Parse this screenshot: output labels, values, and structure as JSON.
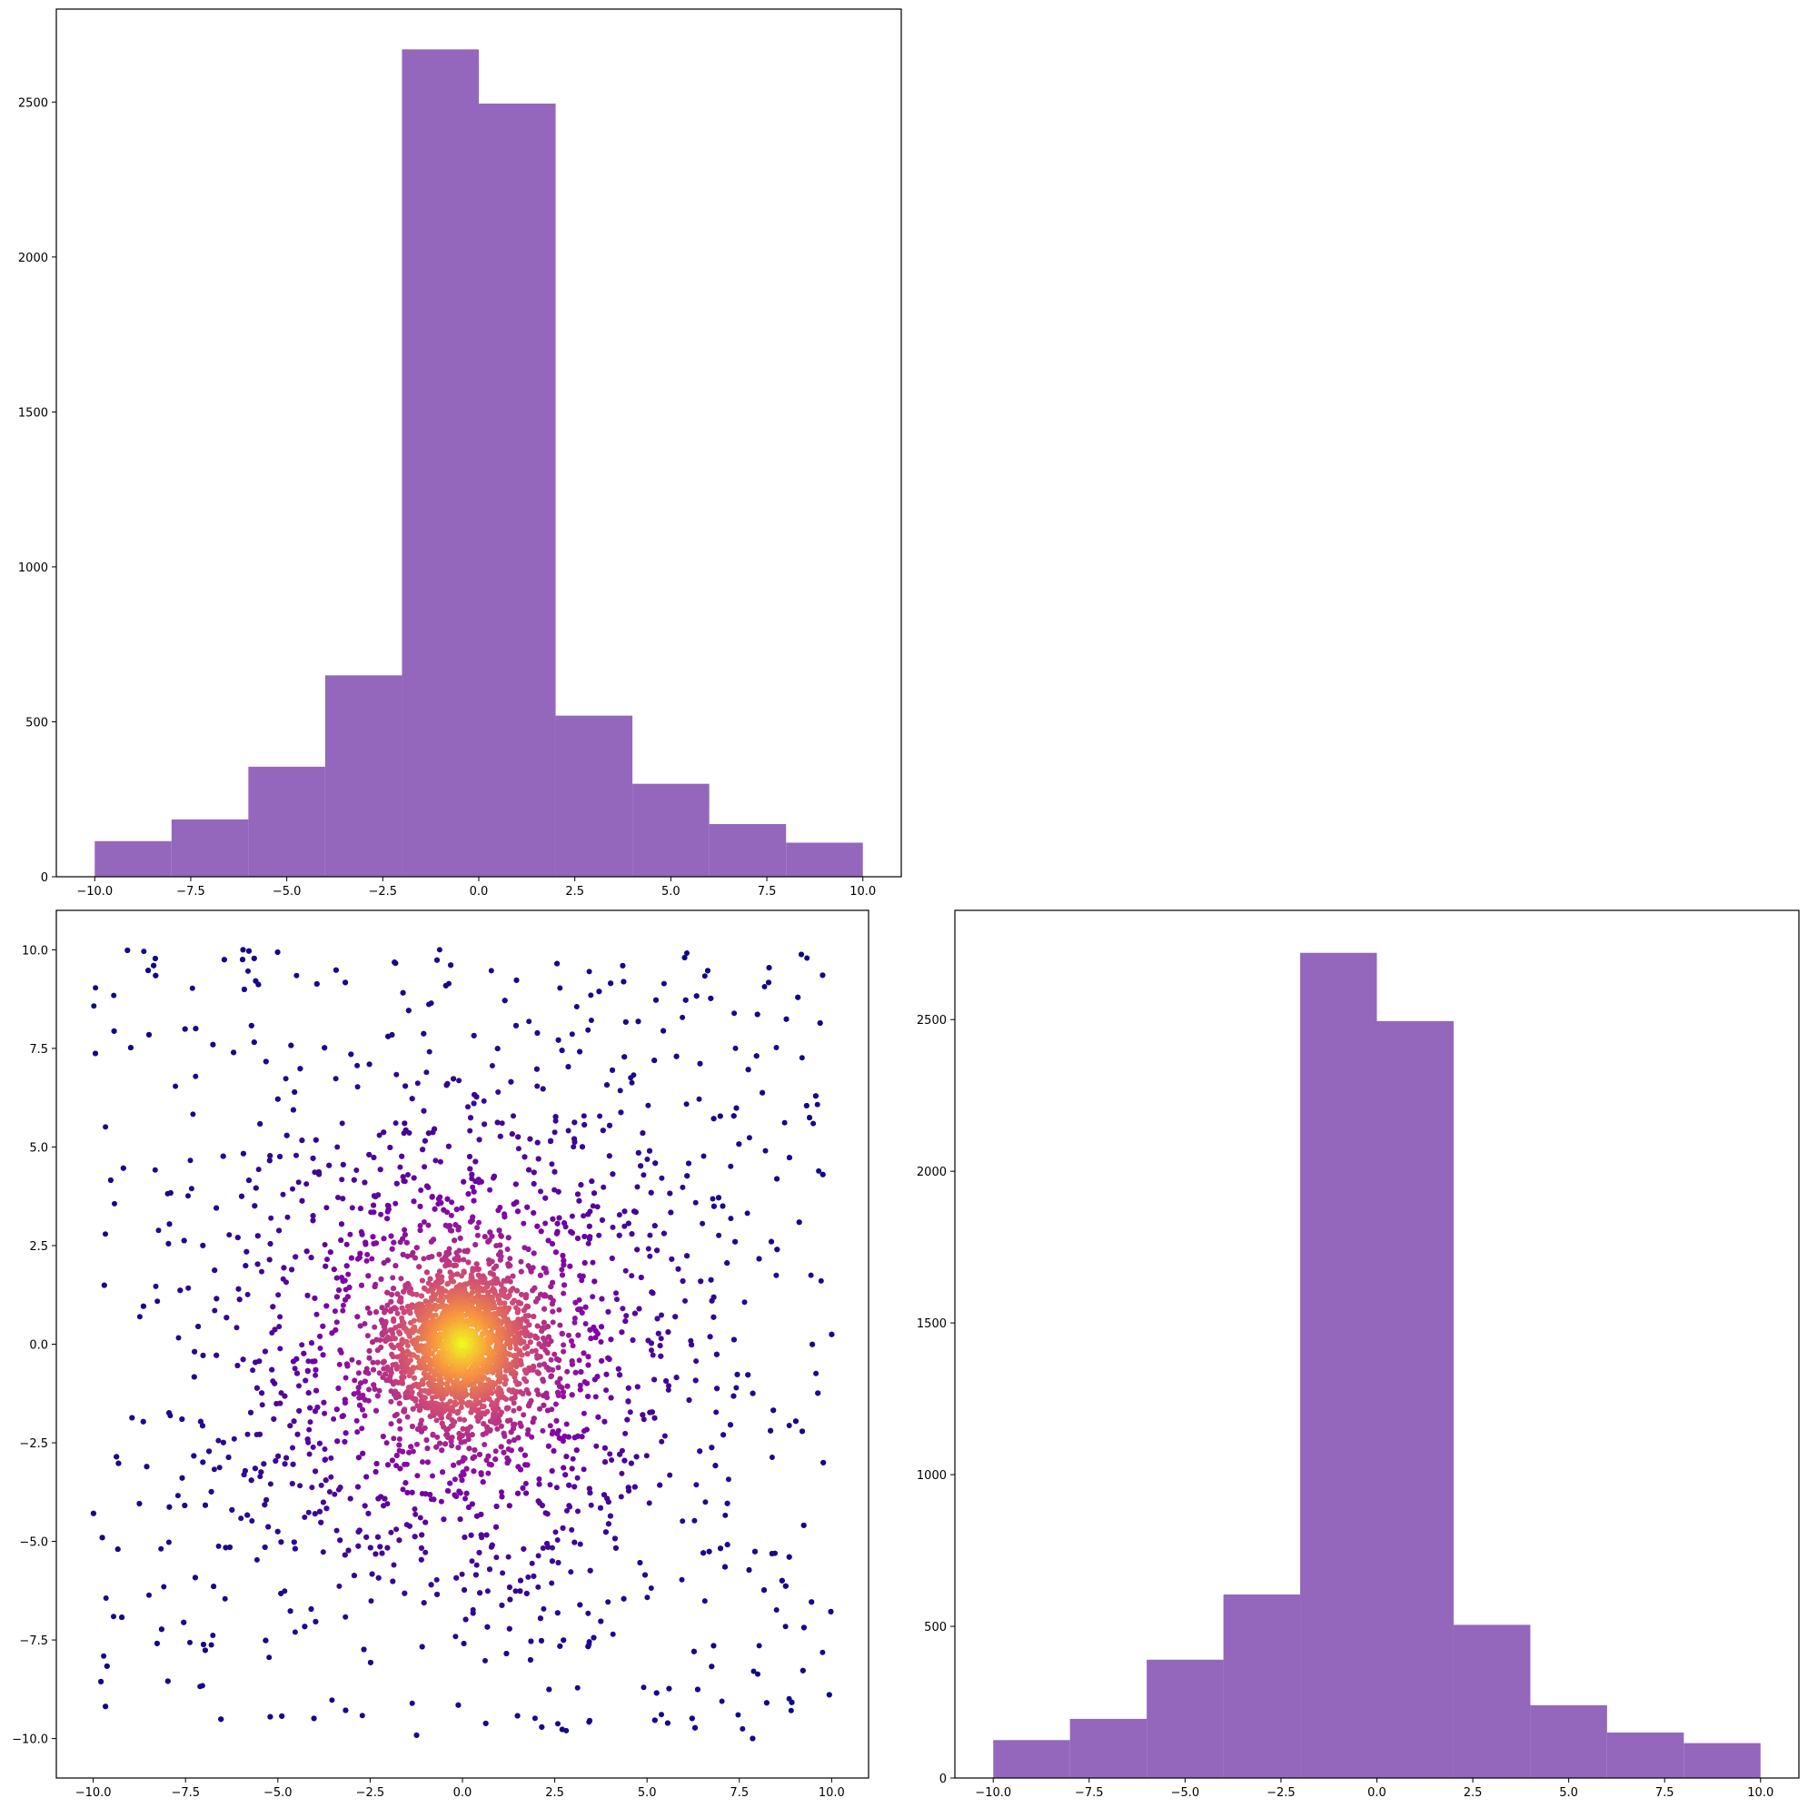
{
  "chart_data": [
    {
      "type": "bar",
      "panel": "top-left histogram",
      "bin_edges": [
        -10,
        -8,
        -6,
        -4,
        -2,
        0,
        2,
        4,
        6,
        8,
        10
      ],
      "values": [
        115,
        185,
        355,
        650,
        2670,
        2495,
        520,
        300,
        170,
        110
      ],
      "xlim": [
        -11,
        11
      ],
      "ylim": [
        0,
        2800
      ],
      "xticks": [
        -10.0,
        -7.5,
        -5.0,
        -2.5,
        0.0,
        2.5,
        5.0,
        7.5,
        10.0
      ],
      "xtick_labels": [
        "−10.0",
        "−7.5",
        "−5.0",
        "−2.5",
        "0.0",
        "2.5",
        "5.0",
        "7.5",
        "10.0"
      ],
      "yticks": [
        0,
        500,
        1000,
        1500,
        2000,
        2500
      ],
      "ytick_labels": [
        "0",
        "500",
        "1000",
        "1500",
        "2000",
        "2500"
      ],
      "color": "#9467bd",
      "grid": false
    },
    {
      "type": "scatter",
      "panel": "bottom-left scatter",
      "xlim": [
        -11,
        11
      ],
      "ylim": [
        -11,
        11
      ],
      "xticks": [
        -10.0,
        -7.5,
        -5.0,
        -2.5,
        0.0,
        2.5,
        5.0,
        7.5,
        10.0
      ],
      "xtick_labels": [
        "−10.0",
        "−7.5",
        "−5.0",
        "−2.5",
        "0.0",
        "2.5",
        "5.0",
        "7.5",
        "10.0"
      ],
      "yticks": [
        -10.0,
        -7.5,
        -5.0,
        -2.5,
        0.0,
        2.5,
        5.0,
        7.5,
        10.0
      ],
      "ytick_labels": [
        "−10.0",
        "−7.5",
        "−5.0",
        "−2.5",
        "0.0",
        "2.5",
        "5.0",
        "7.5",
        "10.0"
      ],
      "x_range": [
        -10,
        10
      ],
      "y_range": [
        -10,
        10
      ],
      "center": [
        0,
        0
      ],
      "colormap": "plasma",
      "color_encodes": "density",
      "approx_points": 8000,
      "grid": false
    },
    {
      "type": "bar",
      "panel": "bottom-right histogram",
      "bin_edges": [
        -10,
        -8,
        -6,
        -4,
        -2,
        0,
        2,
        4,
        6,
        8,
        10
      ],
      "values": [
        125,
        195,
        390,
        605,
        2720,
        2495,
        505,
        240,
        150,
        115
      ],
      "xlim": [
        -11,
        11
      ],
      "ylim": [
        0,
        2860
      ],
      "xticks": [
        -10.0,
        -7.5,
        -5.0,
        -2.5,
        0.0,
        2.5,
        5.0,
        7.5,
        10.0
      ],
      "xtick_labels": [
        "−10.0",
        "−7.5",
        "−5.0",
        "−2.5",
        "0.0",
        "2.5",
        "5.0",
        "7.5",
        "10.0"
      ],
      "yticks": [
        0,
        500,
        1000,
        1500,
        2000,
        2500
      ],
      "ytick_labels": [
        "0",
        "500",
        "1000",
        "1500",
        "2000",
        "2500"
      ],
      "color": "#9467bd",
      "grid": false
    }
  ]
}
